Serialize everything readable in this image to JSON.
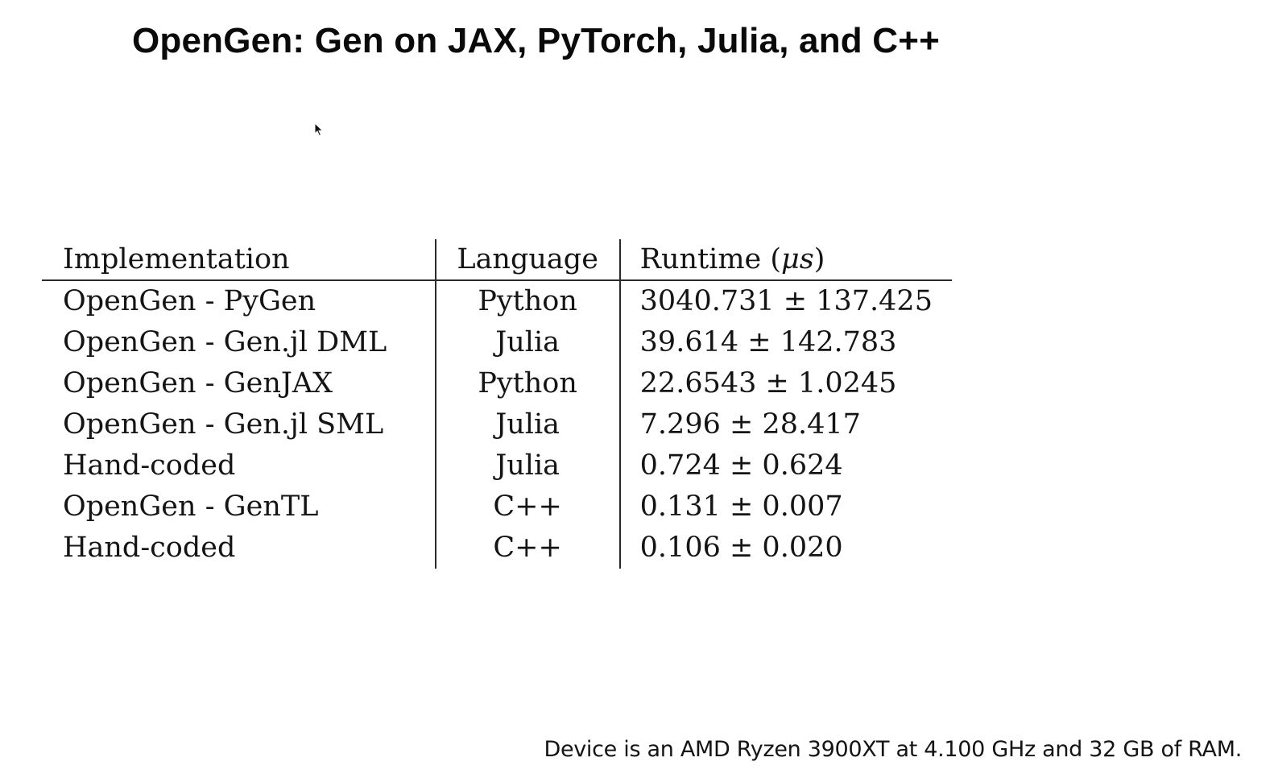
{
  "slide": {
    "title": "OpenGen: Gen on JAX, PyTorch, Julia, and C++",
    "footer": "Device is an AMD Ryzen 3900XT at 4.100 GHz and 32 GB of RAM."
  },
  "table": {
    "headers": {
      "implementation": "Implementation",
      "language": "Language",
      "runtime_prefix": "Runtime (",
      "runtime_unit": "μs",
      "runtime_suffix": ")"
    },
    "rows": [
      {
        "implementation": "OpenGen - PyGen",
        "language": "Python",
        "runtime": "3040.731 ± 137.425"
      },
      {
        "implementation": "OpenGen - Gen.jl DML",
        "language": "Julia",
        "runtime": "39.614 ± 142.783"
      },
      {
        "implementation": "OpenGen - GenJAX",
        "language": "Python",
        "runtime": "22.6543 ± 1.0245"
      },
      {
        "implementation": "OpenGen - Gen.jl SML",
        "language": "Julia",
        "runtime": "7.296 ± 28.417"
      },
      {
        "implementation": "Hand-coded",
        "language": "Julia",
        "runtime": "0.724 ± 0.624"
      },
      {
        "implementation": "OpenGen - GenTL",
        "language": "C++",
        "runtime": "0.131 ± 0.007"
      },
      {
        "implementation": "Hand-coded",
        "language": "C++",
        "runtime": "0.106 ± 0.020"
      }
    ]
  },
  "icons": {
    "cursor": "mouse-pointer-icon"
  }
}
